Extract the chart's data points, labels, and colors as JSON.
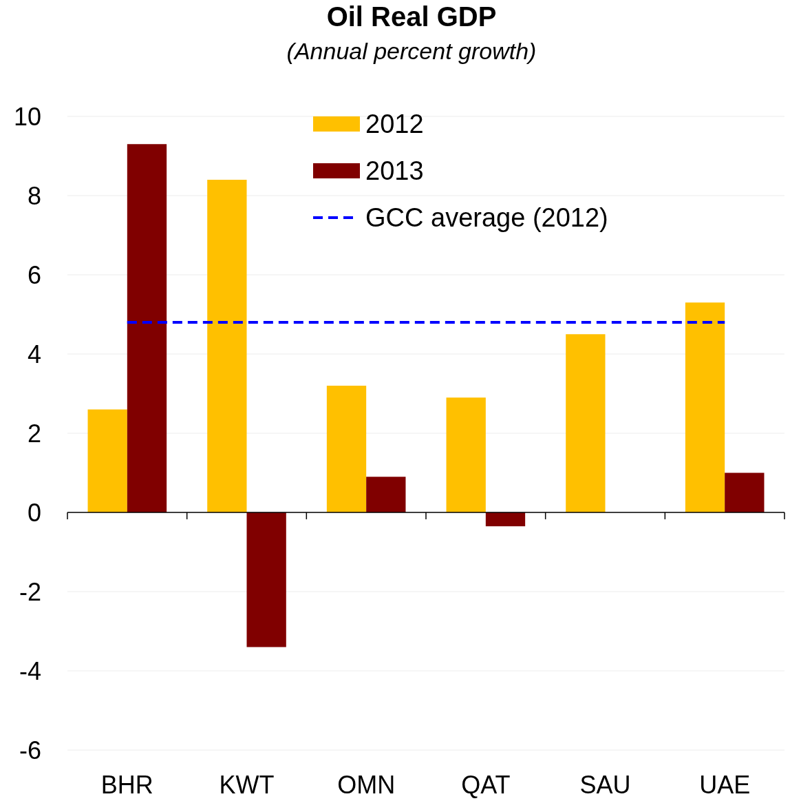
{
  "chart_data": {
    "type": "bar",
    "title": "Oil Real GDP",
    "subtitle": "(Annual percent growth)",
    "categories": [
      "BHR",
      "KWT",
      "OMN",
      "QAT",
      "SAU",
      "UAE"
    ],
    "series": [
      {
        "name": "2012",
        "color": "#ffc000",
        "values": [
          2.6,
          8.4,
          3.2,
          2.9,
          4.5,
          5.3
        ]
      },
      {
        "name": "2013",
        "color": "#800000",
        "values": [
          9.3,
          -3.4,
          0.9,
          -0.35,
          0,
          1.0
        ]
      }
    ],
    "ref_lines": [
      {
        "axis": "y",
        "value": 4.8,
        "label": "GCC average (2012)",
        "color": "#0000ff",
        "line_style": "dashed"
      }
    ],
    "ylim": [
      -6,
      10
    ],
    "yticks": [
      -6,
      -4,
      -2,
      0,
      2,
      4,
      6,
      8,
      10
    ],
    "grid": "y",
    "legend": "top"
  }
}
